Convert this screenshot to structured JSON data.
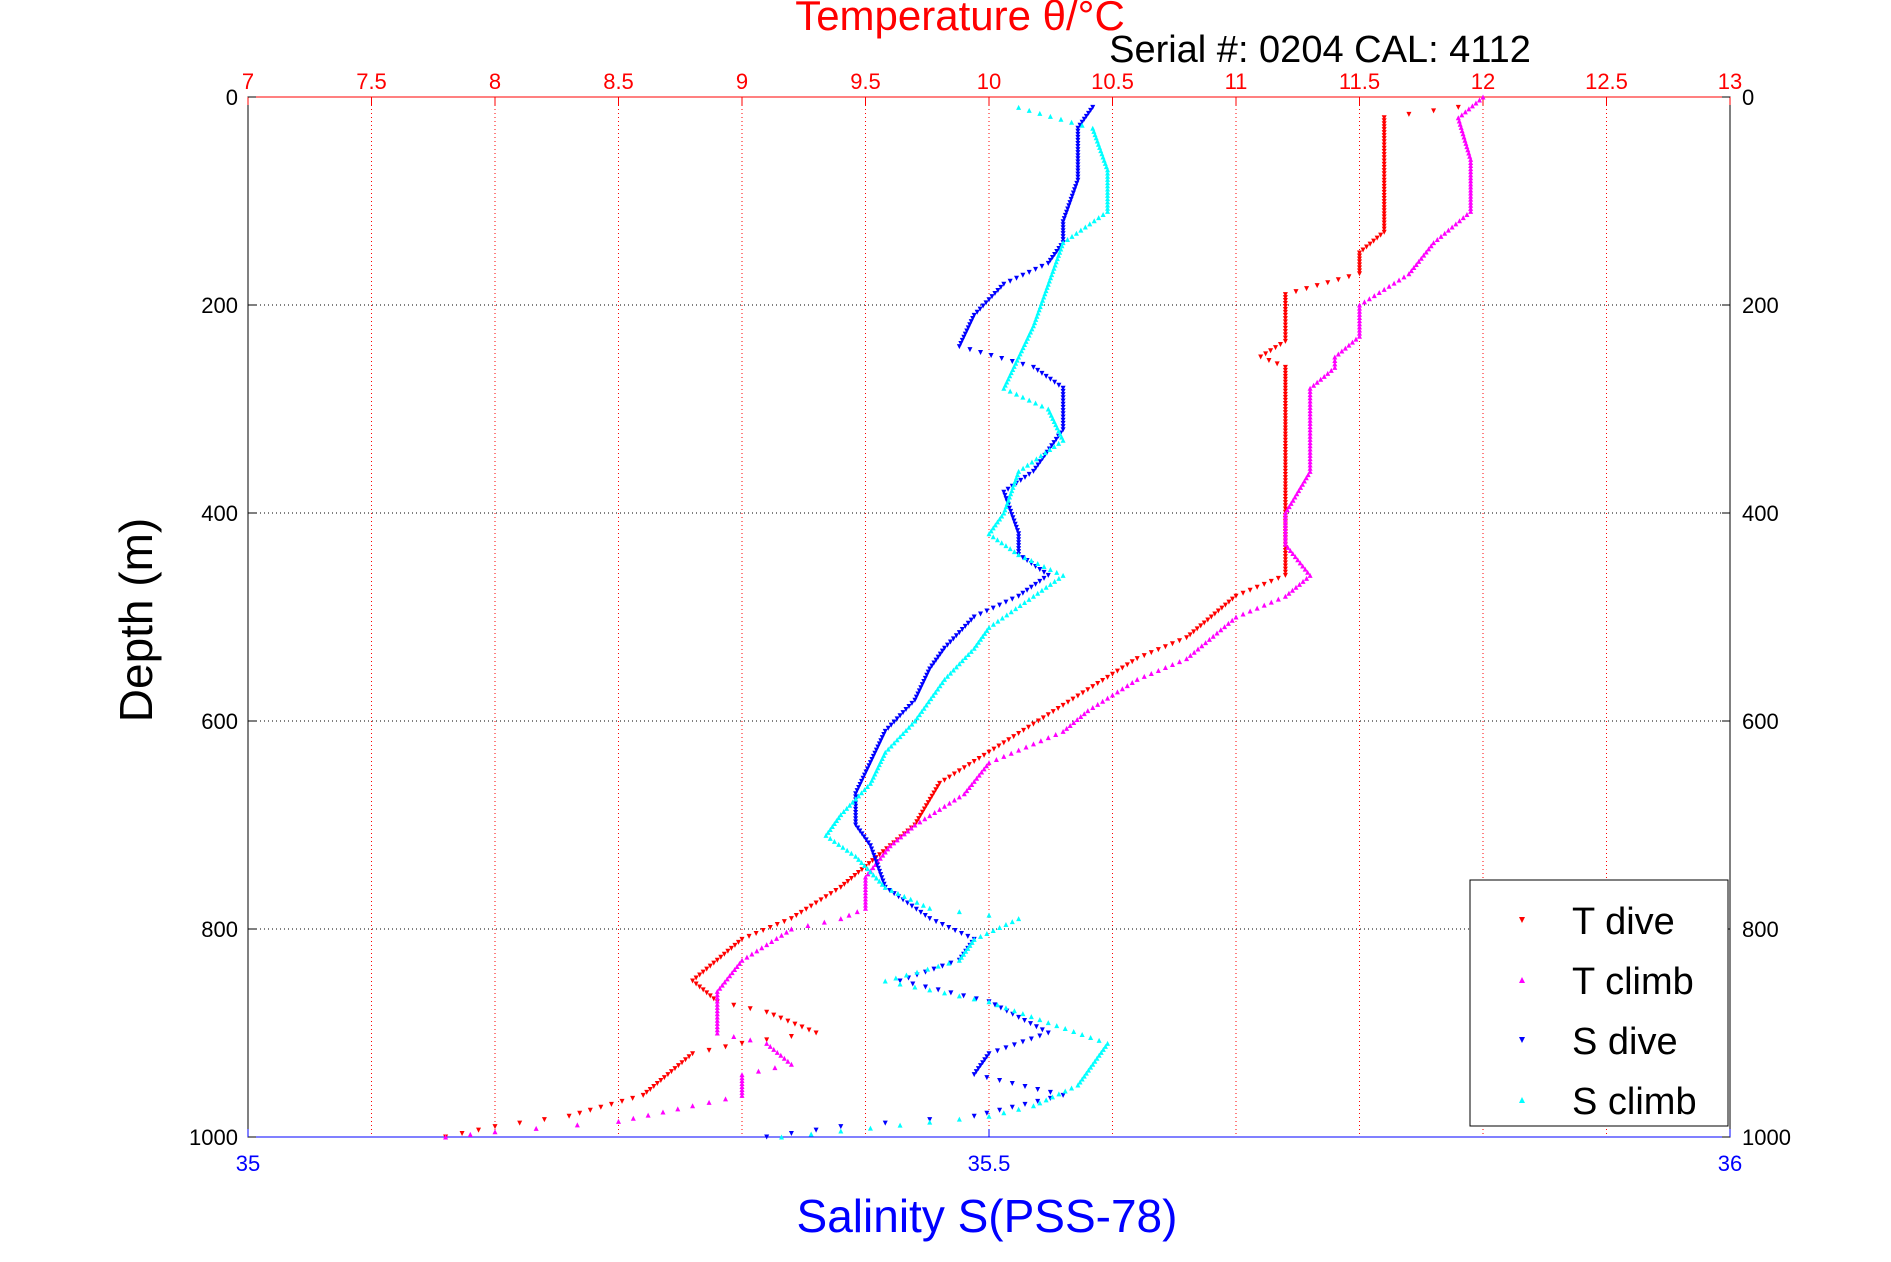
{
  "chart_data": {
    "type": "scatter",
    "title": "Temperature θ/°C",
    "subtitle": "Serial #: 0204  CAL: 4112",
    "xlabel_top": "Temperature θ/°C",
    "xlabel_bottom": "Salinity S(PSS-78)",
    "ylabel": "Depth (m)",
    "temperature_axis": {
      "lim": [
        7,
        13
      ],
      "ticks": [
        7,
        7.5,
        8,
        8.5,
        9,
        9.5,
        10,
        10.5,
        11,
        11.5,
        12,
        12.5,
        13
      ],
      "tick_labels": [
        "7",
        "7.5",
        "8",
        "8.5",
        "9",
        "9.5",
        "10",
        "10.5",
        "11",
        "11.5",
        "12",
        "12.5",
        "13"
      ]
    },
    "salinity_axis": {
      "lim": [
        35,
        36
      ],
      "ticks": [
        35,
        35.5,
        36
      ],
      "tick_labels": [
        "35",
        "35.5",
        "36"
      ]
    },
    "depth_axis": {
      "lim": [
        0,
        1000
      ],
      "reversed": true,
      "ticks": [
        0,
        200,
        400,
        600,
        800,
        1000
      ],
      "tick_labels": [
        "0",
        "200",
        "400",
        "600",
        "800",
        "1000"
      ]
    },
    "grid": true,
    "legend_position": "bottom-right",
    "series": [
      {
        "name": "T dive",
        "axis": "temperature",
        "color": "#ff0000",
        "marker": "triangle-down",
        "points": [
          [
            11.9,
            10
          ],
          [
            11.6,
            20
          ],
          [
            11.6,
            40
          ],
          [
            11.6,
            80
          ],
          [
            11.6,
            130
          ],
          [
            11.5,
            150
          ],
          [
            11.5,
            170
          ],
          [
            11.2,
            190
          ],
          [
            11.2,
            210
          ],
          [
            11.2,
            235
          ],
          [
            11.1,
            250
          ],
          [
            11.2,
            260
          ],
          [
            11.2,
            280
          ],
          [
            11.2,
            330
          ],
          [
            11.2,
            390
          ],
          [
            11.2,
            430
          ],
          [
            11.2,
            460
          ],
          [
            11.0,
            480
          ],
          [
            10.9,
            500
          ],
          [
            10.8,
            520
          ],
          [
            10.6,
            540
          ],
          [
            10.4,
            570
          ],
          [
            10.2,
            600
          ],
          [
            10.0,
            630
          ],
          [
            9.8,
            660
          ],
          [
            9.7,
            700
          ],
          [
            9.6,
            720
          ],
          [
            9.5,
            740
          ],
          [
            9.4,
            760
          ],
          [
            9.2,
            790
          ],
          [
            9.0,
            810
          ],
          [
            8.9,
            830
          ],
          [
            8.8,
            850
          ],
          [
            8.9,
            870
          ],
          [
            9.1,
            880
          ],
          [
            9.3,
            900
          ],
          [
            9.0,
            910
          ],
          [
            8.8,
            920
          ],
          [
            8.7,
            940
          ],
          [
            8.6,
            960
          ],
          [
            8.3,
            980
          ],
          [
            8.0,
            990
          ],
          [
            7.8,
            1000
          ]
        ]
      },
      {
        "name": "T climb",
        "axis": "temperature",
        "color": "#ff00ff",
        "marker": "triangle-up",
        "points": [
          [
            12.0,
            0
          ],
          [
            11.9,
            20
          ],
          [
            11.95,
            60
          ],
          [
            11.95,
            110
          ],
          [
            11.8,
            140
          ],
          [
            11.7,
            170
          ],
          [
            11.5,
            200
          ],
          [
            11.5,
            230
          ],
          [
            11.4,
            250
          ],
          [
            11.4,
            260
          ],
          [
            11.3,
            280
          ],
          [
            11.3,
            320
          ],
          [
            11.3,
            360
          ],
          [
            11.2,
            400
          ],
          [
            11.2,
            430
          ],
          [
            11.3,
            460
          ],
          [
            11.2,
            480
          ],
          [
            11.0,
            500
          ],
          [
            10.8,
            540
          ],
          [
            10.6,
            560
          ],
          [
            10.4,
            590
          ],
          [
            10.3,
            610
          ],
          [
            10.0,
            640
          ],
          [
            9.9,
            670
          ],
          [
            9.7,
            700
          ],
          [
            9.6,
            720
          ],
          [
            9.5,
            750
          ],
          [
            9.5,
            780
          ],
          [
            9.4,
            790
          ],
          [
            9.2,
            800
          ],
          [
            9.0,
            830
          ],
          [
            8.9,
            860
          ],
          [
            8.9,
            900
          ],
          [
            9.1,
            910
          ],
          [
            9.2,
            930
          ],
          [
            9.0,
            940
          ],
          [
            9.0,
            960
          ],
          [
            8.8,
            970
          ],
          [
            8.5,
            985
          ],
          [
            8.0,
            995
          ],
          [
            7.8,
            1000
          ]
        ]
      },
      {
        "name": "S dive",
        "axis": "salinity",
        "color": "#0000ff",
        "marker": "triangle-down",
        "points": [
          [
            35.57,
            10
          ],
          [
            35.56,
            30
          ],
          [
            35.56,
            80
          ],
          [
            35.55,
            120
          ],
          [
            35.55,
            140
          ],
          [
            35.54,
            160
          ],
          [
            35.51,
            180
          ],
          [
            35.49,
            210
          ],
          [
            35.48,
            240
          ],
          [
            35.53,
            260
          ],
          [
            35.55,
            280
          ],
          [
            35.55,
            320
          ],
          [
            35.53,
            360
          ],
          [
            35.51,
            380
          ],
          [
            35.52,
            420
          ],
          [
            35.52,
            440
          ],
          [
            35.54,
            460
          ],
          [
            35.52,
            480
          ],
          [
            35.49,
            500
          ],
          [
            35.47,
            530
          ],
          [
            35.46,
            550
          ],
          [
            35.45,
            580
          ],
          [
            35.43,
            610
          ],
          [
            35.42,
            640
          ],
          [
            35.41,
            670
          ],
          [
            35.41,
            700
          ],
          [
            35.42,
            720
          ],
          [
            35.43,
            760
          ],
          [
            35.46,
            790
          ],
          [
            35.49,
            810
          ],
          [
            35.48,
            830
          ],
          [
            35.44,
            850
          ],
          [
            35.5,
            870
          ],
          [
            35.54,
            900
          ],
          [
            35.5,
            920
          ],
          [
            35.49,
            940
          ],
          [
            35.55,
            960
          ],
          [
            35.49,
            980
          ],
          [
            35.4,
            990
          ],
          [
            35.35,
            1000
          ]
        ]
      },
      {
        "name": "S climb",
        "axis": "salinity",
        "color": "#00ffff",
        "marker": "triangle-up",
        "points": [
          [
            35.52,
            10
          ],
          [
            35.57,
            30
          ],
          [
            35.58,
            70
          ],
          [
            35.58,
            110
          ],
          [
            35.55,
            140
          ],
          [
            35.54,
            180
          ],
          [
            35.53,
            220
          ],
          [
            35.52,
            250
          ],
          [
            35.51,
            280
          ],
          [
            35.54,
            300
          ],
          [
            35.55,
            330
          ],
          [
            35.52,
            360
          ],
          [
            35.51,
            400
          ],
          [
            35.5,
            420
          ],
          [
            35.52,
            440
          ],
          [
            35.55,
            460
          ],
          [
            35.53,
            480
          ],
          [
            35.5,
            510
          ],
          [
            35.49,
            530
          ],
          [
            35.47,
            560
          ],
          [
            35.45,
            600
          ],
          [
            35.43,
            630
          ],
          [
            35.42,
            660
          ],
          [
            35.4,
            690
          ],
          [
            35.39,
            710
          ],
          [
            35.41,
            730
          ],
          [
            35.43,
            760
          ],
          [
            35.46,
            780
          ],
          [
            35.52,
            790
          ],
          [
            35.49,
            810
          ],
          [
            35.48,
            830
          ],
          [
            35.43,
            850
          ],
          [
            35.5,
            870
          ],
          [
            35.54,
            890
          ],
          [
            35.58,
            910
          ],
          [
            35.57,
            930
          ],
          [
            35.56,
            950
          ],
          [
            35.53,
            970
          ],
          [
            35.5,
            980
          ],
          [
            35.36,
            1000
          ]
        ]
      }
    ]
  }
}
